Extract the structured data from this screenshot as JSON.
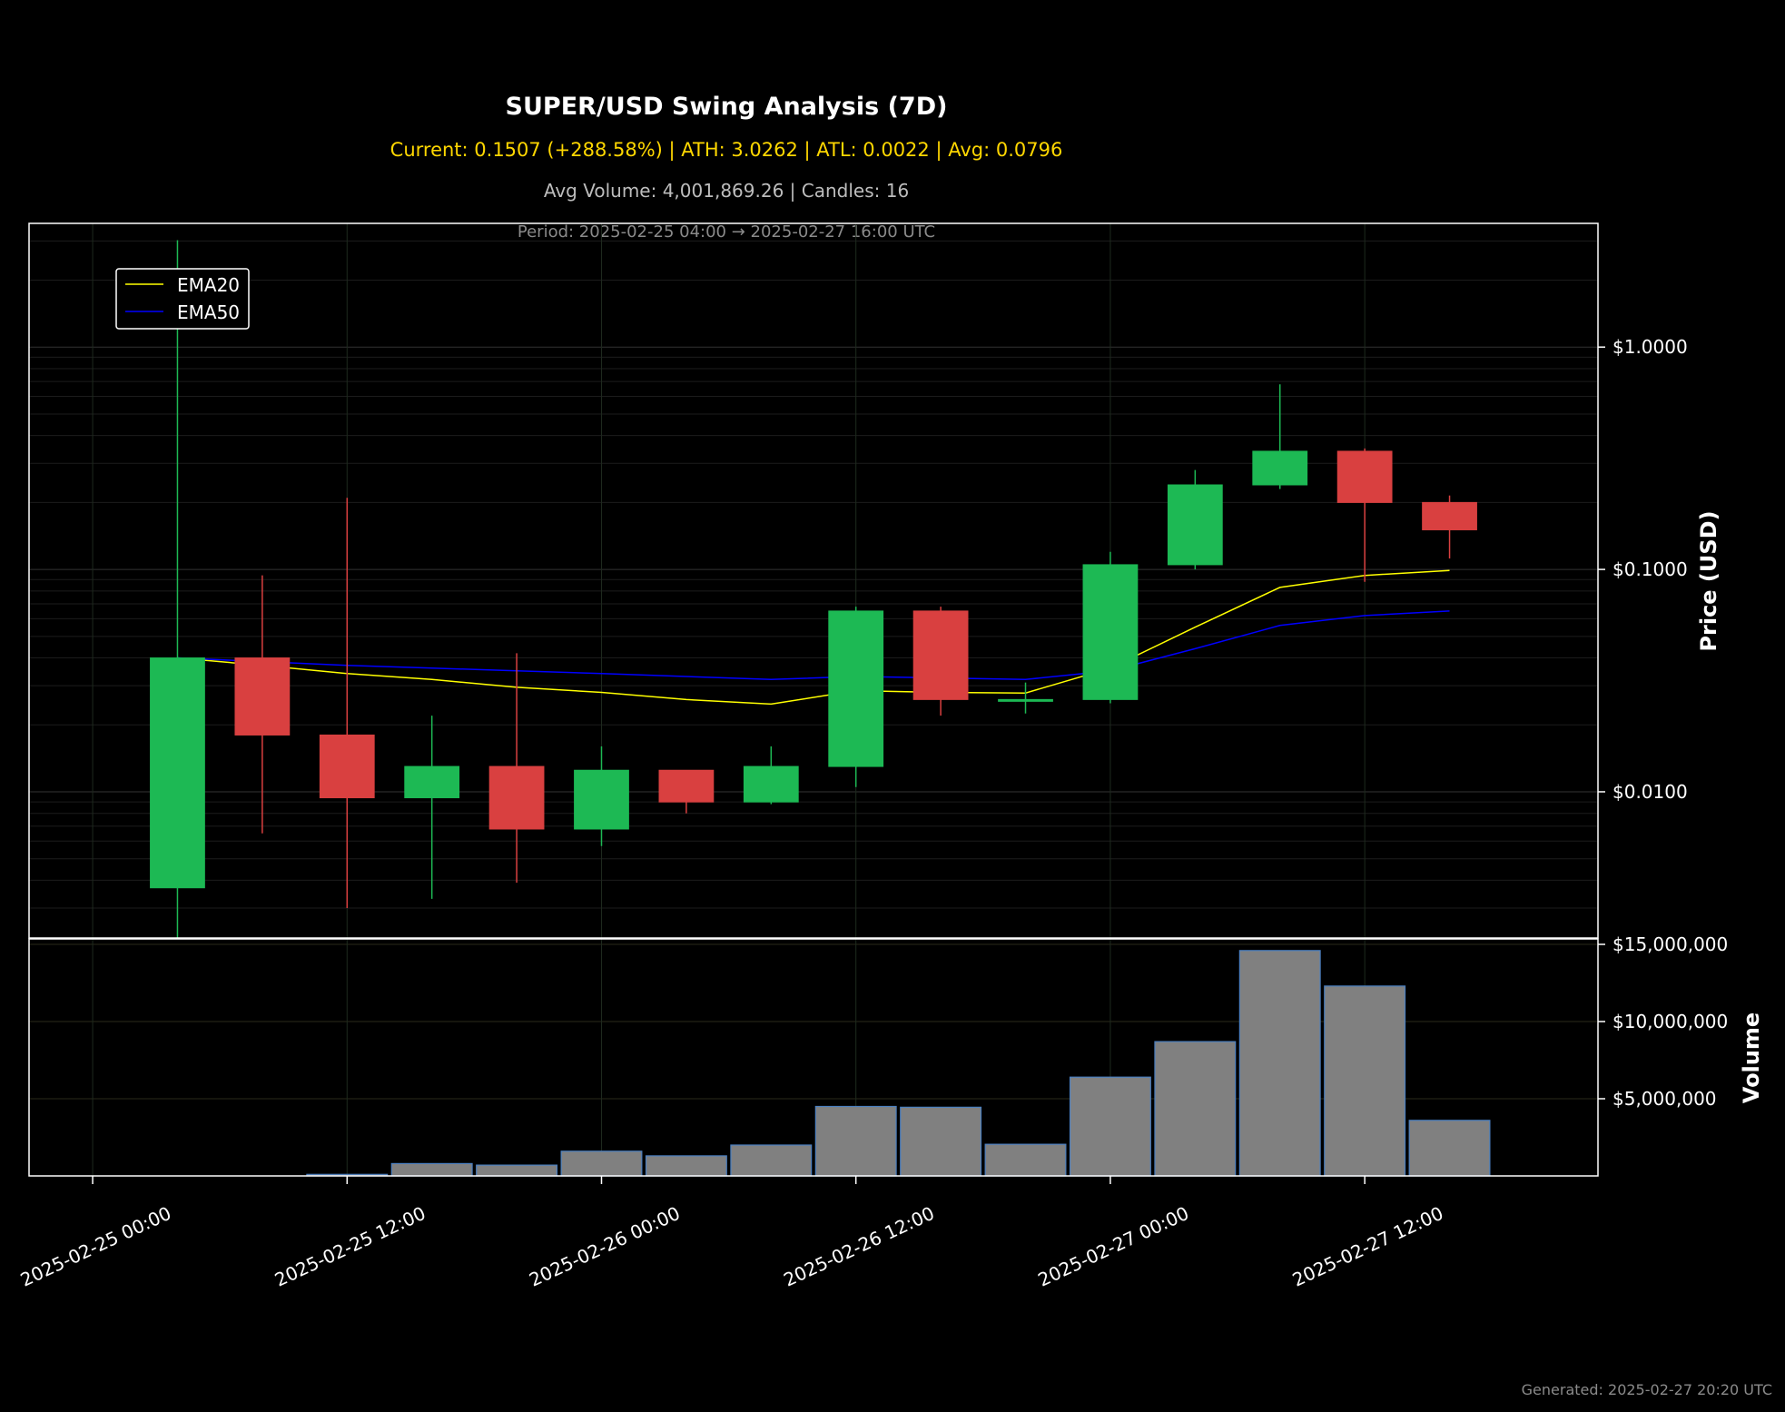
{
  "chart_data": {
    "type": "candlestick",
    "title": "SUPER/USD Swing Analysis (7D)",
    "subtitle_stats": "Current: 0.1507 (+288.58%) | ATH: 3.0262 | ATL: 0.0022 | Avg: 0.0796",
    "subtitle_volume": "Avg Volume: 4,001,869.26 | Candles: 16",
    "period": "Period: 2025-02-25 04:00 → 2025-02-27 16:00 UTC",
    "footer": "Generated: 2025-02-27 20:20 UTC",
    "ylabel_price": "Price (USD)",
    "ylabel_volume": "Volume",
    "price_scale": "log",
    "price_ylim": [
      0.0022,
      3.6
    ],
    "price_ticks": [
      {
        "value": 1.0,
        "label": "$1.0000"
      },
      {
        "value": 0.1,
        "label": "$0.1000"
      },
      {
        "value": 0.01,
        "label": "$0.0100"
      }
    ],
    "volume_ylim": [
      0,
      15000000
    ],
    "volume_ticks": [
      {
        "value": 15000000,
        "label": "$15,000,000"
      },
      {
        "value": 10000000,
        "label": "$10,000,000"
      },
      {
        "value": 5000000,
        "label": "$5,000,000"
      }
    ],
    "x_unit": "hours since 2025-02-25 00:00",
    "x_range": [
      -3,
      71
    ],
    "x_ticks": [
      {
        "hour": 0,
        "label": "2025-02-25 00:00"
      },
      {
        "hour": 12,
        "label": "2025-02-25 12:00"
      },
      {
        "hour": 24,
        "label": "2025-02-26 00:00"
      },
      {
        "hour": 36,
        "label": "2025-02-26 12:00"
      },
      {
        "hour": 48,
        "label": "2025-02-27 00:00"
      },
      {
        "hour": 60,
        "label": "2025-02-27 12:00"
      }
    ],
    "candles": [
      {
        "time": "2025-02-25 04:00",
        "open": 0.0037,
        "high": 3.0262,
        "low": 0.0022,
        "close": 0.04,
        "volume": 0
      },
      {
        "time": "2025-02-25 08:00",
        "open": 0.04,
        "high": 0.094,
        "low": 0.0065,
        "close": 0.018,
        "volume": 0
      },
      {
        "time": "2025-02-25 12:00",
        "open": 0.018,
        "high": 0.21,
        "low": 0.003,
        "close": 0.0094,
        "volume": 100000
      },
      {
        "time": "2025-02-25 16:00",
        "open": 0.0094,
        "high": 0.022,
        "low": 0.0033,
        "close": 0.013,
        "volume": 800000
      },
      {
        "time": "2025-02-25 20:00",
        "open": 0.013,
        "high": 0.042,
        "low": 0.0039,
        "close": 0.0068,
        "volume": 700000
      },
      {
        "time": "2025-02-26 00:00",
        "open": 0.0068,
        "high": 0.016,
        "low": 0.0057,
        "close": 0.0125,
        "volume": 1600000
      },
      {
        "time": "2025-02-26 04:00",
        "open": 0.0125,
        "high": 0.0125,
        "low": 0.008,
        "close": 0.009,
        "volume": 1300000
      },
      {
        "time": "2025-02-26 08:00",
        "open": 0.009,
        "high": 0.016,
        "low": 0.0088,
        "close": 0.013,
        "volume": 2000000
      },
      {
        "time": "2025-02-26 12:00",
        "open": 0.013,
        "high": 0.068,
        "low": 0.0105,
        "close": 0.065,
        "volume": 4500000
      },
      {
        "time": "2025-02-26 16:00",
        "open": 0.065,
        "high": 0.068,
        "low": 0.022,
        "close": 0.026,
        "volume": 4450000
      },
      {
        "time": "2025-02-26 20:00",
        "open": 0.026,
        "high": 0.031,
        "low": 0.0225,
        "close": 0.026,
        "volume": 2050000
      },
      {
        "time": "2025-02-27 00:00",
        "open": 0.026,
        "high": 0.12,
        "low": 0.025,
        "close": 0.105,
        "volume": 6400000
      },
      {
        "time": "2025-02-27 04:00",
        "open": 0.105,
        "high": 0.28,
        "low": 0.1,
        "close": 0.24,
        "volume": 8700000
      },
      {
        "time": "2025-02-27 08:00",
        "open": 0.24,
        "high": 0.68,
        "low": 0.23,
        "close": 0.34,
        "volume": 14600000
      },
      {
        "time": "2025-02-27 12:00",
        "open": 0.34,
        "high": 0.35,
        "low": 0.088,
        "close": 0.2,
        "volume": 12300000
      },
      {
        "time": "2025-02-27 16:00",
        "open": 0.2,
        "high": 0.215,
        "low": 0.112,
        "close": 0.1507,
        "volume": 3600000
      }
    ],
    "series": [
      {
        "name": "EMA20",
        "color": "#ffff00",
        "values": [
          0.04,
          0.037,
          0.034,
          0.032,
          0.0295,
          0.028,
          0.026,
          0.0248,
          0.0285,
          0.028,
          0.0278,
          0.036,
          0.055,
          0.083,
          0.094,
          0.099
        ]
      },
      {
        "name": "EMA50",
        "color": "#0000ff",
        "values": [
          0.04,
          0.0385,
          0.037,
          0.036,
          0.035,
          0.034,
          0.033,
          0.032,
          0.033,
          0.0325,
          0.032,
          0.035,
          0.044,
          0.056,
          0.062,
          0.065
        ]
      }
    ],
    "colors": {
      "up": "#1db954",
      "down": "#d94040",
      "volume_bar": "#808080",
      "volume_edge": "#4a7fc0",
      "grid": "#2a2a2a",
      "background": "#000000",
      "axis": "#ffffff"
    },
    "legend_placement": "top-left",
    "grid": true
  }
}
